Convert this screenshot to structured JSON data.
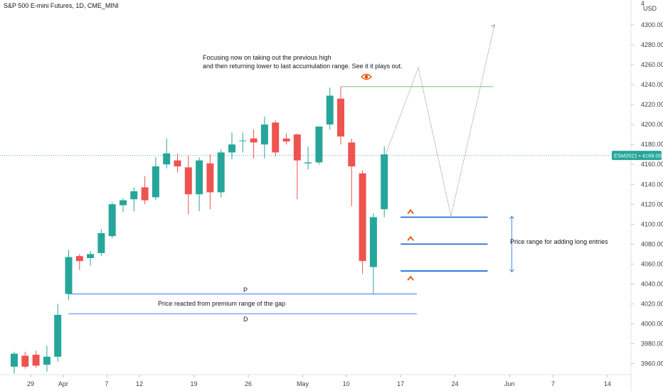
{
  "chart_data": {
    "type": "candlestick",
    "title": "S&P 500 E-mini Futures, 1D, CME_MINI",
    "currency": "USD",
    "price_scale": {
      "ylim": [
        3948,
        4314
      ],
      "ticks": [
        3960,
        3980,
        4000,
        4020,
        4040,
        4060,
        4080,
        4100,
        4120,
        4140,
        4160,
        4180,
        4200,
        4220,
        4240,
        4260,
        4280,
        4300
      ],
      "tick_labels": [
        "3960.00",
        "3980.00",
        "4000.00",
        "4020.00",
        "4040.00",
        "4060.00",
        "4080.00",
        "4100.00",
        "4120.00",
        "4140.00",
        "4160.00",
        "4180.00",
        "4200.00",
        "4220.00",
        "4240.00",
        "4260.00",
        "4280.00",
        "4300.00"
      ],
      "top_partial_label": "4"
    },
    "time_scale": {
      "xlim": [
        0,
        66
      ],
      "ticks": [
        {
          "x": 1.5,
          "label": "29"
        },
        {
          "x": 4.5,
          "label": "Apr"
        },
        {
          "x": 8.5,
          "label": "7"
        },
        {
          "x": 11.5,
          "label": "12"
        },
        {
          "x": 16.5,
          "label": "19"
        },
        {
          "x": 21.5,
          "label": "26"
        },
        {
          "x": 26.5,
          "label": "May"
        },
        {
          "x": 30.5,
          "label": "10"
        },
        {
          "x": 35.5,
          "label": "17"
        },
        {
          "x": 40.5,
          "label": "24"
        },
        {
          "x": 45.5,
          "label": "Jun"
        },
        {
          "x": 49.5,
          "label": "7"
        },
        {
          "x": 54.5,
          "label": "14"
        }
      ]
    },
    "candles": [
      {
        "x": 0,
        "o": 3957,
        "h": 3972,
        "l": 3950,
        "c": 3970
      },
      {
        "x": 1,
        "o": 3968,
        "h": 3972,
        "l": 3955,
        "c": 3957
      },
      {
        "x": 2,
        "o": 3969,
        "h": 3973,
        "l": 3956,
        "c": 3958
      },
      {
        "x": 3,
        "o": 3959,
        "h": 3978,
        "l": 3952,
        "c": 3967
      },
      {
        "x": 4,
        "o": 3967,
        "h": 4020,
        "l": 3962,
        "c": 4009
      },
      {
        "x": 5,
        "o": 4030,
        "h": 4074,
        "l": 4024,
        "c": 4067
      },
      {
        "x": 6,
        "o": 4068,
        "h": 4070,
        "l": 4054,
        "c": 4063
      },
      {
        "x": 7,
        "o": 4066,
        "h": 4073,
        "l": 4058,
        "c": 4070
      },
      {
        "x": 8,
        "o": 4071,
        "h": 4095,
        "l": 4068,
        "c": 4091
      },
      {
        "x": 9,
        "o": 4088,
        "h": 4122,
        "l": 4086,
        "c": 4120
      },
      {
        "x": 10,
        "o": 4119,
        "h": 4126,
        "l": 4112,
        "c": 4124
      },
      {
        "x": 11,
        "o": 4125,
        "h": 4137,
        "l": 4113,
        "c": 4133
      },
      {
        "x": 12,
        "o": 4137,
        "h": 4148,
        "l": 4120,
        "c": 4124
      },
      {
        "x": 13,
        "o": 4127,
        "h": 4167,
        "l": 4124,
        "c": 4158
      },
      {
        "x": 14,
        "o": 4160,
        "h": 4186,
        "l": 4156,
        "c": 4171
      },
      {
        "x": 15,
        "o": 4164,
        "h": 4171,
        "l": 4152,
        "c": 4158
      },
      {
        "x": 16,
        "o": 4157,
        "h": 4169,
        "l": 4110,
        "c": 4130
      },
      {
        "x": 17,
        "o": 4130,
        "h": 4167,
        "l": 4113,
        "c": 4164
      },
      {
        "x": 18,
        "o": 4161,
        "h": 4170,
        "l": 4115,
        "c": 4132
      },
      {
        "x": 19,
        "o": 4132,
        "h": 4175,
        "l": 4127,
        "c": 4172
      },
      {
        "x": 20,
        "o": 4172,
        "h": 4192,
        "l": 4165,
        "c": 4180
      },
      {
        "x": 21,
        "o": 4184,
        "h": 4192,
        "l": 4172,
        "c": 4184
      },
      {
        "x": 22,
        "o": 4186,
        "h": 4195,
        "l": 4166,
        "c": 4182
      },
      {
        "x": 23,
        "o": 4180,
        "h": 4208,
        "l": 4166,
        "c": 4200
      },
      {
        "x": 24,
        "o": 4202,
        "h": 4204,
        "l": 4168,
        "c": 4172
      },
      {
        "x": 25,
        "o": 4186,
        "h": 4191,
        "l": 4180,
        "c": 4183
      },
      {
        "x": 26,
        "o": 4190,
        "h": 4191,
        "l": 4125,
        "c": 4164
      },
      {
        "x": 27,
        "o": 4161,
        "h": 4178,
        "l": 4155,
        "c": 4162
      },
      {
        "x": 28,
        "o": 4162,
        "h": 4198,
        "l": 4160,
        "c": 4198
      },
      {
        "x": 29,
        "o": 4200,
        "h": 4237,
        "l": 4195,
        "c": 4229
      },
      {
        "x": 30,
        "o": 4226,
        "h": 4238,
        "l": 4180,
        "c": 4188
      },
      {
        "x": 31,
        "o": 4182,
        "h": 4186,
        "l": 4118,
        "c": 4158
      },
      {
        "x": 32,
        "o": 4151,
        "h": 4154,
        "l": 4050,
        "c": 4063
      },
      {
        "x": 33,
        "o": 4057,
        "h": 4111,
        "l": 4030,
        "c": 4107
      },
      {
        "x": 34,
        "o": 4115,
        "h": 4178,
        "l": 4107,
        "c": 4170
      }
    ],
    "colors": {
      "up": "#26a69a",
      "down": "#ef5350"
    },
    "current_price": {
      "label": "ESM2021",
      "value": "4169.00",
      "price": 4169,
      "color": "#26a69a"
    },
    "annotations": {
      "note1_line1": "Focusing now on taking out the previous high",
      "note1_line2": "and then returning lower to last accumulation range. See it it plays out.",
      "note2": "Price reacted from premium range of the gap",
      "note3": "Price range for adding long entries",
      "label_p": "P",
      "label_d": "D",
      "eye_icon": "eye-icon",
      "caret_icon": "caret-up-icon"
    },
    "levels": {
      "prev_high": {
        "price": 4238,
        "x_from": 30,
        "x_to": 44,
        "color": "#4caf50"
      },
      "line_p": {
        "price": 4030,
        "x_from": 5,
        "x_to": 37,
        "color": "#2962ff"
      },
      "line_d": {
        "price": 4010,
        "x_from": 5,
        "x_to": 37,
        "color": "#2962ff"
      },
      "entry_levels": [
        {
          "price": 4107,
          "x_from": 35.5,
          "x_to": 43.5
        },
        {
          "price": 4080,
          "x_from": 35.5,
          "x_to": 43.5
        },
        {
          "price": 4053,
          "x_from": 35.5,
          "x_to": 43.5
        }
      ],
      "entry_color": "#1e6fd9",
      "range_arrow": {
        "x": 45,
        "top": 4108,
        "bottom": 4052
      }
    },
    "projection_path": [
      {
        "x": 34,
        "price": 4170
      },
      {
        "x": 37,
        "price": 4257
      },
      {
        "x": 40,
        "price": 4108
      },
      {
        "x": 44,
        "price": 4300
      }
    ],
    "grid": false,
    "legend": "none"
  }
}
